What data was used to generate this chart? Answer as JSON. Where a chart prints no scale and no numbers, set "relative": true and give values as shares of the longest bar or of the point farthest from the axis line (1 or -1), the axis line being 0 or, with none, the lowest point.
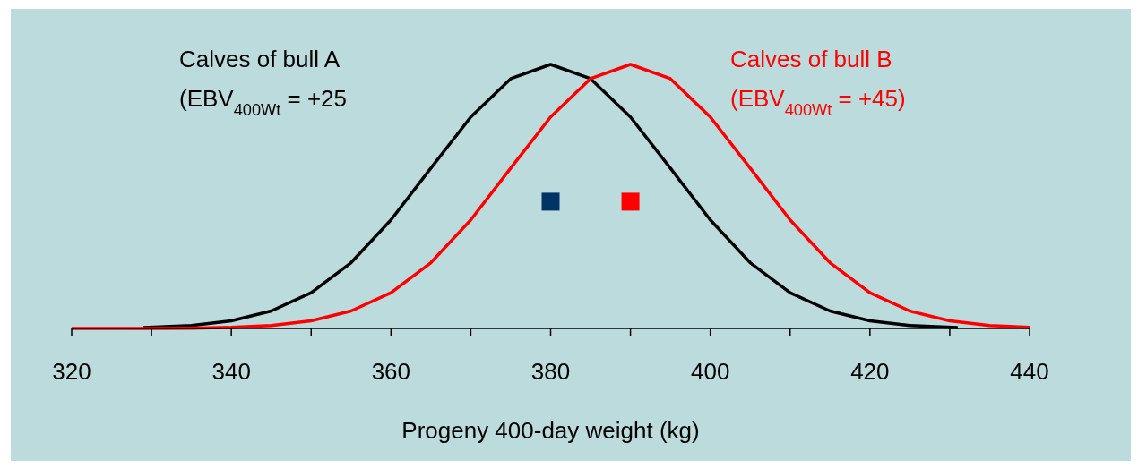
{
  "chart_data": {
    "type": "line",
    "relative": true,
    "xlabel": "Progeny 400-day weight (kg)",
    "xlim": [
      320,
      440
    ],
    "xticks": [
      320,
      {
        "value": 330,
        "label": null
      },
      340,
      {
        "value": 350,
        "label": null
      },
      360,
      {
        "value": 370,
        "label": null
      },
      380,
      {
        "value": 390,
        "label": null
      },
      400,
      {
        "value": 410,
        "label": null
      },
      420,
      {
        "value": 430,
        "label": null
      },
      440
    ],
    "grid": false,
    "marker": "none",
    "line_style": "solid",
    "series": [
      {
        "name": "Calves of bull A\n(EBV$_{400Wt}$ = +25",
        "color": "#000000",
        "x": [
          329,
          335,
          340,
          345,
          350,
          355,
          360,
          365,
          370,
          375,
          380,
          385,
          390,
          395,
          400,
          405,
          410,
          415,
          420,
          425,
          431
        ],
        "values": [
          0.003,
          0.011,
          0.029,
          0.066,
          0.135,
          0.249,
          0.411,
          0.607,
          0.801,
          0.946,
          1,
          0.946,
          0.801,
          0.607,
          0.411,
          0.249,
          0.135,
          0.066,
          0.029,
          0.011,
          0.003
        ]
      },
      {
        "name": "Calves of bull B\n(EBV$_{400Wt}$ = +45)",
        "color": "#ff0000",
        "x": [
          320,
          330,
          335,
          340,
          345,
          350,
          355,
          360,
          365,
          370,
          375,
          380,
          385,
          390,
          395,
          400,
          405,
          410,
          415,
          420,
          425,
          430,
          435,
          440
        ],
        "values": [
          0,
          0,
          0.001,
          0.004,
          0.011,
          0.029,
          0.066,
          0.135,
          0.249,
          0.411,
          0.607,
          0.801,
          0.946,
          1,
          0.946,
          0.801,
          0.607,
          0.411,
          0.249,
          0.135,
          0.066,
          0.029,
          0.011,
          0.004
        ]
      },
      {
        "type": "scatter",
        "marker": "square",
        "color": "#003366",
        "x": [
          380
        ],
        "values": [
          0.48
        ]
      },
      {
        "type": "scatter",
        "marker": "square",
        "color": "#ff0000",
        "x": [
          390
        ],
        "values": [
          0.48
        ]
      }
    ]
  }
}
